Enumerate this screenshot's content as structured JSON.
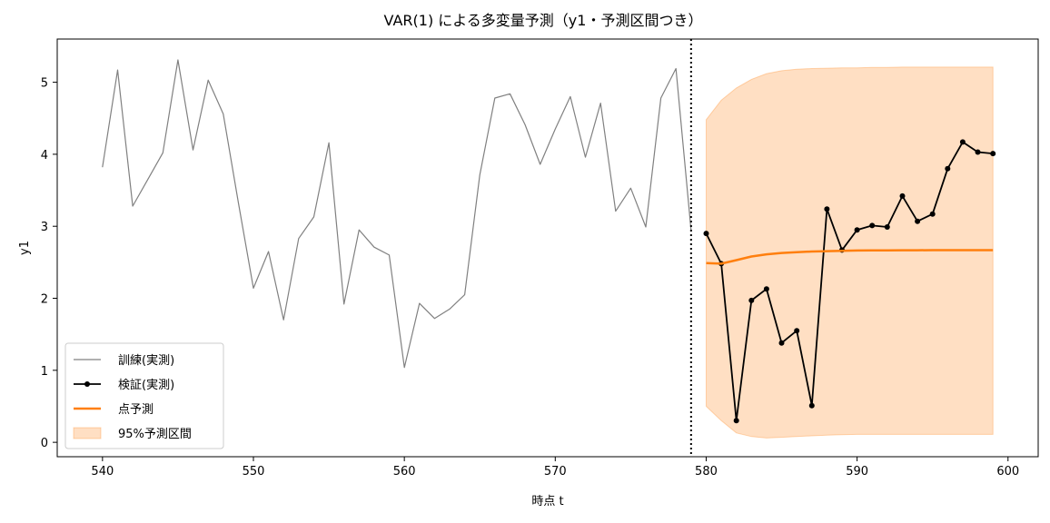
{
  "chart_data": {
    "type": "line",
    "title": "VAR(1) による多変量予測（y1・予測区間つき）",
    "xlabel": "時点 t",
    "ylabel": "y1",
    "xlim": [
      537.0,
      602.0
    ],
    "ylim": [
      -0.2,
      5.6
    ],
    "x_ticks": [
      540,
      550,
      560,
      570,
      580,
      590,
      600
    ],
    "y_ticks": [
      0,
      1,
      2,
      3,
      4,
      5
    ],
    "grid": false,
    "legend_position": "lower-left",
    "forecast_origin_line": 579,
    "series": [
      {
        "name": "訓練(実測)",
        "kind": "line",
        "color": "#808080",
        "x": [
          540,
          541,
          542,
          543,
          544,
          545,
          546,
          547,
          548,
          549,
          550,
          551,
          552,
          553,
          554,
          555,
          556,
          557,
          558,
          559,
          560,
          561,
          562,
          563,
          564,
          565,
          566,
          567,
          568,
          569,
          570,
          571,
          572,
          573,
          574,
          575,
          576,
          577,
          578,
          579
        ],
        "y": [
          3.82,
          5.17,
          3.28,
          3.65,
          4.02,
          5.31,
          4.06,
          5.03,
          4.56,
          3.33,
          2.14,
          2.65,
          1.7,
          2.83,
          3.13,
          4.16,
          1.92,
          2.95,
          2.71,
          2.6,
          1.04,
          1.93,
          1.72,
          1.85,
          2.05,
          3.71,
          4.78,
          4.84,
          4.41,
          3.86,
          4.35,
          4.8,
          3.96,
          4.71,
          3.21,
          3.53,
          2.99,
          4.78,
          5.19,
          2.95
        ]
      },
      {
        "name": "検証(実測)",
        "kind": "line-markers",
        "color": "#000000",
        "x": [
          580,
          581,
          582,
          583,
          584,
          585,
          586,
          587,
          588,
          589,
          590,
          591,
          592,
          593,
          594,
          595,
          596,
          597,
          598,
          599
        ],
        "y": [
          2.9,
          2.48,
          0.3,
          1.97,
          2.13,
          1.38,
          1.55,
          0.51,
          3.24,
          2.67,
          2.95,
          3.01,
          2.99,
          3.42,
          3.07,
          3.17,
          3.8,
          4.17,
          4.03,
          4.01
        ]
      },
      {
        "name": "点予測",
        "kind": "line",
        "color": "#ff7f0e",
        "x": [
          580,
          581,
          582,
          583,
          584,
          585,
          586,
          587,
          588,
          589,
          590,
          591,
          592,
          593,
          594,
          595,
          596,
          597,
          598,
          599
        ],
        "y": [
          2.49,
          2.48,
          2.53,
          2.58,
          2.61,
          2.63,
          2.64,
          2.65,
          2.655,
          2.66,
          2.663,
          2.665,
          2.666,
          2.667,
          2.667,
          2.668,
          2.668,
          2.668,
          2.668,
          2.668
        ]
      }
    ],
    "interval": {
      "name": "95%予測区間",
      "color": "#ff7f0e",
      "x": [
        580,
        581,
        582,
        583,
        584,
        585,
        586,
        587,
        588,
        589,
        590,
        591,
        592,
        593,
        594,
        595,
        596,
        597,
        598,
        599
      ],
      "lower": [
        0.5,
        0.3,
        0.13,
        0.08,
        0.06,
        0.07,
        0.08,
        0.09,
        0.1,
        0.105,
        0.11,
        0.11,
        0.11,
        0.11,
        0.11,
        0.11,
        0.11,
        0.11,
        0.11,
        0.11
      ],
      "upper": [
        4.48,
        4.75,
        4.92,
        5.04,
        5.12,
        5.16,
        5.18,
        5.19,
        5.195,
        5.2,
        5.2,
        5.205,
        5.205,
        5.21,
        5.21,
        5.21,
        5.21,
        5.21,
        5.21,
        5.21
      ]
    }
  }
}
